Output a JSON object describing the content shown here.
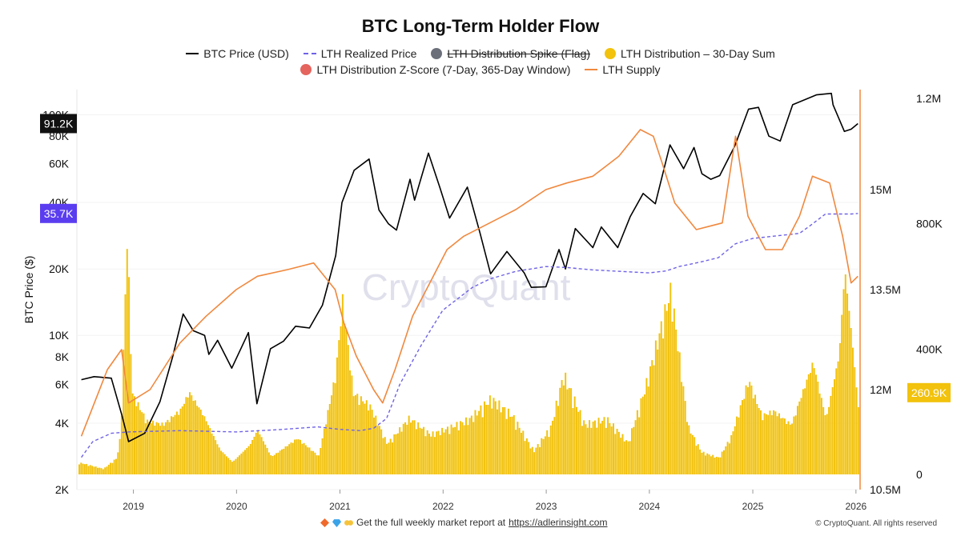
{
  "chart_data": {
    "type": "line",
    "title": "BTC Long-Term Holder Flow",
    "ylabel": "BTC Price ($)",
    "y_left_scale": "log",
    "y_left_range": [
      2000,
      130000
    ],
    "y_left_ticks": [
      "2K",
      "4K",
      "6K",
      "8K",
      "10K",
      "20K",
      "40K",
      "60K",
      "80K",
      "100K"
    ],
    "y_right_supply_range": [
      10500000,
      16500000
    ],
    "y_right_supply_ticks": [
      "10.5M",
      "12M",
      "13.5M",
      "15M"
    ],
    "y_right_dist_range": [
      0,
      1200000
    ],
    "y_right_dist_ticks": [
      "0",
      "400K",
      "800K",
      "1.2M"
    ],
    "x_ticks": [
      "2019",
      "2020",
      "2021",
      "2022",
      "2023",
      "2024",
      "2025",
      "2026"
    ],
    "x_range": [
      "2018-06-15",
      "2026-01-10"
    ],
    "watermark": "CryptoQuant",
    "current_labels": {
      "btc_price": "91.2K",
      "realized_price": "35.7K",
      "distribution": "260.9K"
    },
    "series": [
      {
        "name": "BTC Price (USD)",
        "color": "#000000",
        "style": "solid",
        "axis": "left",
        "points": [
          [
            "2018-07-01",
            6300
          ],
          [
            "2018-08-15",
            6500
          ],
          [
            "2018-10-15",
            6400
          ],
          [
            "2018-11-20",
            4400
          ],
          [
            "2018-12-15",
            3300
          ],
          [
            "2019-02-10",
            3600
          ],
          [
            "2019-04-05",
            5000
          ],
          [
            "2019-05-20",
            8000
          ],
          [
            "2019-06-26",
            12500
          ],
          [
            "2019-08-01",
            10500
          ],
          [
            "2019-09-10",
            10000
          ],
          [
            "2019-09-25",
            8200
          ],
          [
            "2019-10-26",
            9500
          ],
          [
            "2019-12-15",
            7100
          ],
          [
            "2020-02-12",
            10300
          ],
          [
            "2020-03-13",
            4900
          ],
          [
            "2020-04-30",
            8700
          ],
          [
            "2020-06-15",
            9400
          ],
          [
            "2020-07-28",
            11000
          ],
          [
            "2020-09-15",
            10800
          ],
          [
            "2020-10-31",
            13700
          ],
          [
            "2020-12-17",
            23000
          ],
          [
            "2021-01-08",
            40000
          ],
          [
            "2021-02-20",
            56000
          ],
          [
            "2021-04-14",
            63000
          ],
          [
            "2021-05-19",
            37000
          ],
          [
            "2021-06-22",
            32000
          ],
          [
            "2021-07-20",
            30000
          ],
          [
            "2021-09-06",
            51000
          ],
          [
            "2021-09-22",
            41000
          ],
          [
            "2021-11-10",
            67000
          ],
          [
            "2021-12-20",
            47000
          ],
          [
            "2022-01-24",
            34000
          ],
          [
            "2022-03-28",
            47000
          ],
          [
            "2022-05-12",
            29000
          ],
          [
            "2022-06-18",
            19000
          ],
          [
            "2022-08-15",
            24000
          ],
          [
            "2022-10-15",
            19200
          ],
          [
            "2022-11-09",
            16500
          ],
          [
            "2022-12-31",
            16600
          ],
          [
            "2023-02-15",
            24500
          ],
          [
            "2023-03-10",
            20000
          ],
          [
            "2023-04-14",
            30500
          ],
          [
            "2023-06-15",
            25000
          ],
          [
            "2023-07-15",
            31000
          ],
          [
            "2023-09-11",
            25000
          ],
          [
            "2023-10-25",
            34500
          ],
          [
            "2023-12-10",
            44000
          ],
          [
            "2024-01-22",
            39500
          ],
          [
            "2024-03-14",
            73000
          ],
          [
            "2024-05-01",
            57000
          ],
          [
            "2024-06-07",
            71000
          ],
          [
            "2024-07-05",
            54000
          ],
          [
            "2024-08-05",
            51000
          ],
          [
            "2024-09-06",
            53000
          ],
          [
            "2024-10-29",
            72000
          ],
          [
            "2024-12-17",
            106000
          ],
          [
            "2025-01-21",
            108000
          ],
          [
            "2025-02-27",
            80000
          ],
          [
            "2025-04-08",
            76000
          ],
          [
            "2025-05-22",
            111000
          ],
          [
            "2025-08-14",
            123000
          ],
          [
            "2025-10-06",
            125000
          ],
          [
            "2025-10-12",
            111000
          ],
          [
            "2025-11-21",
            84000
          ],
          [
            "2025-12-15",
            86000
          ],
          [
            "2026-01-08",
            91200
          ]
        ]
      },
      {
        "name": "LTH Realized Price",
        "color": "#6f63e6",
        "style": "dashed",
        "axis": "left",
        "points": [
          [
            "2018-07-01",
            2800
          ],
          [
            "2018-08-10",
            3300
          ],
          [
            "2018-10-15",
            3600
          ],
          [
            "2018-12-15",
            3650
          ],
          [
            "2019-06-15",
            3700
          ],
          [
            "2019-12-31",
            3650
          ],
          [
            "2020-06-15",
            3750
          ],
          [
            "2020-10-15",
            3850
          ],
          [
            "2020-12-31",
            3750
          ],
          [
            "2021-03-15",
            3700
          ],
          [
            "2021-05-01",
            3800
          ],
          [
            "2021-06-15",
            4200
          ],
          [
            "2021-08-01",
            6000
          ],
          [
            "2021-10-15",
            9000
          ],
          [
            "2021-12-31",
            13000
          ],
          [
            "2022-04-15",
            16500
          ],
          [
            "2022-06-15",
            18000
          ],
          [
            "2022-09-15",
            19500
          ],
          [
            "2022-12-31",
            20500
          ],
          [
            "2023-03-15",
            20300
          ],
          [
            "2023-06-15",
            19800
          ],
          [
            "2023-12-31",
            19200
          ],
          [
            "2024-03-01",
            19600
          ],
          [
            "2024-04-15",
            20500
          ],
          [
            "2024-06-30",
            21500
          ],
          [
            "2024-09-01",
            22500
          ],
          [
            "2024-10-31",
            26000
          ],
          [
            "2024-12-31",
            27500
          ],
          [
            "2025-06-15",
            29000
          ],
          [
            "2025-07-31",
            32000
          ],
          [
            "2025-09-15",
            35500
          ],
          [
            "2025-12-15",
            35500
          ],
          [
            "2026-01-08",
            35700
          ]
        ]
      },
      {
        "name": "LTH Supply",
        "color": "#f0883e",
        "style": "solid",
        "axis": "right-supply",
        "points": [
          [
            "2018-07-01",
            11300
          ],
          [
            "2018-10-01",
            12300
          ],
          [
            "2018-11-20",
            12600
          ],
          [
            "2018-12-15",
            11800
          ],
          [
            "2019-03-01",
            12000
          ],
          [
            "2019-06-15",
            12700
          ],
          [
            "2019-09-15",
            13100
          ],
          [
            "2019-12-31",
            13500
          ],
          [
            "2020-03-15",
            13700
          ],
          [
            "2020-06-30",
            13800
          ],
          [
            "2020-09-30",
            13900
          ],
          [
            "2020-12-15",
            13500
          ],
          [
            "2021-01-15",
            13000
          ],
          [
            "2021-02-28",
            12500
          ],
          [
            "2021-04-30",
            12000
          ],
          [
            "2021-06-01",
            11800
          ],
          [
            "2021-07-15",
            12300
          ],
          [
            "2021-09-15",
            13100
          ],
          [
            "2021-11-15",
            13600
          ],
          [
            "2022-01-15",
            14100
          ],
          [
            "2022-03-15",
            14300
          ],
          [
            "2022-06-15",
            14500
          ],
          [
            "2022-09-15",
            14700
          ],
          [
            "2022-12-31",
            15000
          ],
          [
            "2023-03-15",
            15100
          ],
          [
            "2023-06-15",
            15200
          ],
          [
            "2023-09-15",
            15500
          ],
          [
            "2023-11-30",
            15900
          ],
          [
            "2024-01-15",
            15800
          ],
          [
            "2024-02-15",
            15400
          ],
          [
            "2024-03-31",
            14800
          ],
          [
            "2024-06-15",
            14400
          ],
          [
            "2024-09-15",
            14500
          ],
          [
            "2024-11-01",
            15800
          ],
          [
            "2024-12-15",
            14600
          ],
          [
            "2025-02-15",
            14100
          ],
          [
            "2025-04-15",
            14100
          ],
          [
            "2025-06-15",
            14600
          ],
          [
            "2025-07-31",
            15200
          ],
          [
            "2025-09-30",
            15100
          ],
          [
            "2025-11-15",
            14300
          ],
          [
            "2025-12-15",
            13600
          ],
          [
            "2026-01-08",
            13700
          ]
        ]
      }
    ],
    "bars": {
      "name": "LTH Distribution – 30-Day Sum",
      "color": "#f2c20c",
      "axis": "right-dist",
      "points": [
        [
          "2018-07-01",
          40000
        ],
        [
          "2018-09-15",
          20000
        ],
        [
          "2018-11-01",
          60000
        ],
        [
          "2018-11-15",
          150000
        ],
        [
          "2018-12-08",
          900000
        ],
        [
          "2018-12-25",
          300000
        ],
        [
          "2019-02-15",
          200000
        ],
        [
          "2019-04-15",
          190000
        ],
        [
          "2019-06-15",
          250000
        ],
        [
          "2019-07-15",
          320000
        ],
        [
          "2019-09-01",
          240000
        ],
        [
          "2019-11-01",
          100000
        ],
        [
          "2019-12-15",
          50000
        ],
        [
          "2020-02-15",
          120000
        ],
        [
          "2020-03-13",
          180000
        ],
        [
          "2020-05-01",
          70000
        ],
        [
          "2020-08-01",
          140000
        ],
        [
          "2020-10-15",
          70000
        ],
        [
          "2020-12-15",
          380000
        ],
        [
          "2021-01-08",
          650000
        ],
        [
          "2021-02-15",
          300000
        ],
        [
          "2021-04-15",
          250000
        ],
        [
          "2021-06-15",
          110000
        ],
        [
          "2021-09-01",
          200000
        ],
        [
          "2021-11-15",
          140000
        ],
        [
          "2022-01-15",
          160000
        ],
        [
          "2022-04-01",
          190000
        ],
        [
          "2022-06-18",
          260000
        ],
        [
          "2022-09-01",
          200000
        ],
        [
          "2022-11-15",
          80000
        ],
        [
          "2023-01-15",
          160000
        ],
        [
          "2023-03-01",
          340000
        ],
        [
          "2023-05-15",
          170000
        ],
        [
          "2023-08-01",
          190000
        ],
        [
          "2023-10-15",
          110000
        ],
        [
          "2023-12-15",
          300000
        ],
        [
          "2024-03-15",
          650000
        ],
        [
          "2024-05-15",
          170000
        ],
        [
          "2024-07-01",
          80000
        ],
        [
          "2024-09-01",
          60000
        ],
        [
          "2024-10-15",
          140000
        ],
        [
          "2024-12-15",
          350000
        ],
        [
          "2025-01-31",
          220000
        ],
        [
          "2025-03-15",
          240000
        ],
        [
          "2025-05-15",
          190000
        ],
        [
          "2025-07-31",
          440000
        ],
        [
          "2025-09-15",
          220000
        ],
        [
          "2025-10-31",
          480000
        ],
        [
          "2025-11-20",
          830000
        ],
        [
          "2025-12-15",
          560000
        ],
        [
          "2026-01-08",
          260900
        ]
      ]
    },
    "hidden_series": [
      {
        "name": "LTH Distribution Spike (Flag)",
        "color": "#6b6f7a",
        "state": "disabled"
      },
      {
        "name": "LTH Distribution Z-Score (7-Day, 365-Day Window)",
        "color": "#e5645e"
      }
    ]
  },
  "legend": {
    "btc_price": "BTC Price (USD)",
    "realized_price": "LTH Realized Price",
    "spike_flag": "LTH Distribution Spike (Flag)",
    "dist_sum": "LTH Distribution – 30-Day Sum",
    "zscore": "LTH Distribution Z-Score (7-Day, 365-Day Window)",
    "supply": "LTH Supply"
  },
  "footer": {
    "text": "Get the full weekly market report at",
    "link": "https://adlerinsight.com",
    "copyright": "© CryptoQuant. All rights reserved"
  }
}
